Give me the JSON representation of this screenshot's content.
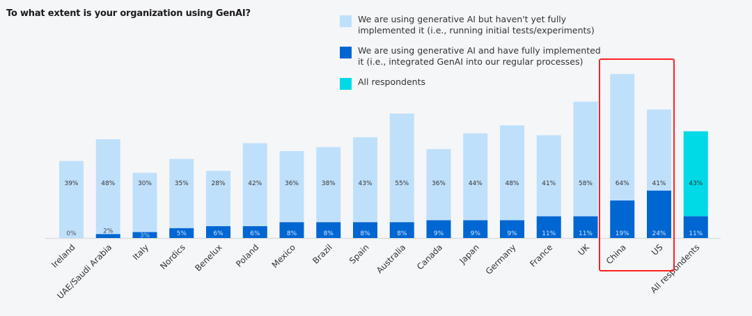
{
  "chart_data": {
    "type": "bar",
    "stacked": true,
    "title": "To what extent is your organization using GenAI?",
    "xlabel": "",
    "ylabel": "",
    "ylim": [
      0,
      85
    ],
    "grid": false,
    "legend_position": "top-right",
    "categories": [
      "Ireland",
      "UAE/Saudi Arabia",
      "Italy",
      "Nordics",
      "Benelux",
      "Poland",
      "Mexico",
      "Brazil",
      "Spain",
      "Australia",
      "Canada",
      "Japan",
      "Germany",
      "France",
      "UK",
      "China",
      "US",
      "All respondents"
    ],
    "series": [
      {
        "name": "We are using generative AI and have fully implemented it (i.e., integrated GenAI into our regular processes)",
        "color": "#0066d1",
        "values": [
          0,
          2,
          3,
          5,
          6,
          6,
          8,
          8,
          8,
          8,
          9,
          9,
          9,
          11,
          11,
          19,
          24,
          11
        ],
        "labels": [
          "0%",
          "2%",
          "3%",
          "5%",
          "6%",
          "6%",
          "8%",
          "8%",
          "8%",
          "8%",
          "9%",
          "9%",
          "9%",
          "11%",
          "11%",
          "19%",
          "24%",
          "11%"
        ]
      },
      {
        "name": "We are using generative AI but haven't yet fully implemented it (i.e., running initial tests/experiments)",
        "color": "#bfe0fb",
        "values": [
          39,
          48,
          30,
          35,
          28,
          42,
          36,
          38,
          43,
          55,
          36,
          44,
          48,
          41,
          58,
          64,
          41,
          43
        ],
        "labels": [
          "39%",
          "48%",
          "30%",
          "35%",
          "28%",
          "42%",
          "36%",
          "38%",
          "43%",
          "55%",
          "36%",
          "44%",
          "48%",
          "41%",
          "58%",
          "64%",
          "41%",
          "43%"
        ]
      }
    ],
    "highlight_series": {
      "name": "All respondents",
      "color": "#00d9e6",
      "category": "All respondents"
    },
    "annotations": [
      {
        "type": "highlight-box",
        "categories": [
          "China",
          "US"
        ],
        "color": "#ff2020"
      }
    ]
  },
  "legend": [
    {
      "label": "We are using generative AI but haven't yet fully implemented it (i.e., running initial tests/experiments)",
      "color": "#bfe0fb"
    },
    {
      "label": "We are using generative AI and have fully implemented it (i.e., integrated GenAI into our regular processes)",
      "color": "#0066d1"
    },
    {
      "label": "All respondents",
      "color": "#00d9e6"
    }
  ]
}
